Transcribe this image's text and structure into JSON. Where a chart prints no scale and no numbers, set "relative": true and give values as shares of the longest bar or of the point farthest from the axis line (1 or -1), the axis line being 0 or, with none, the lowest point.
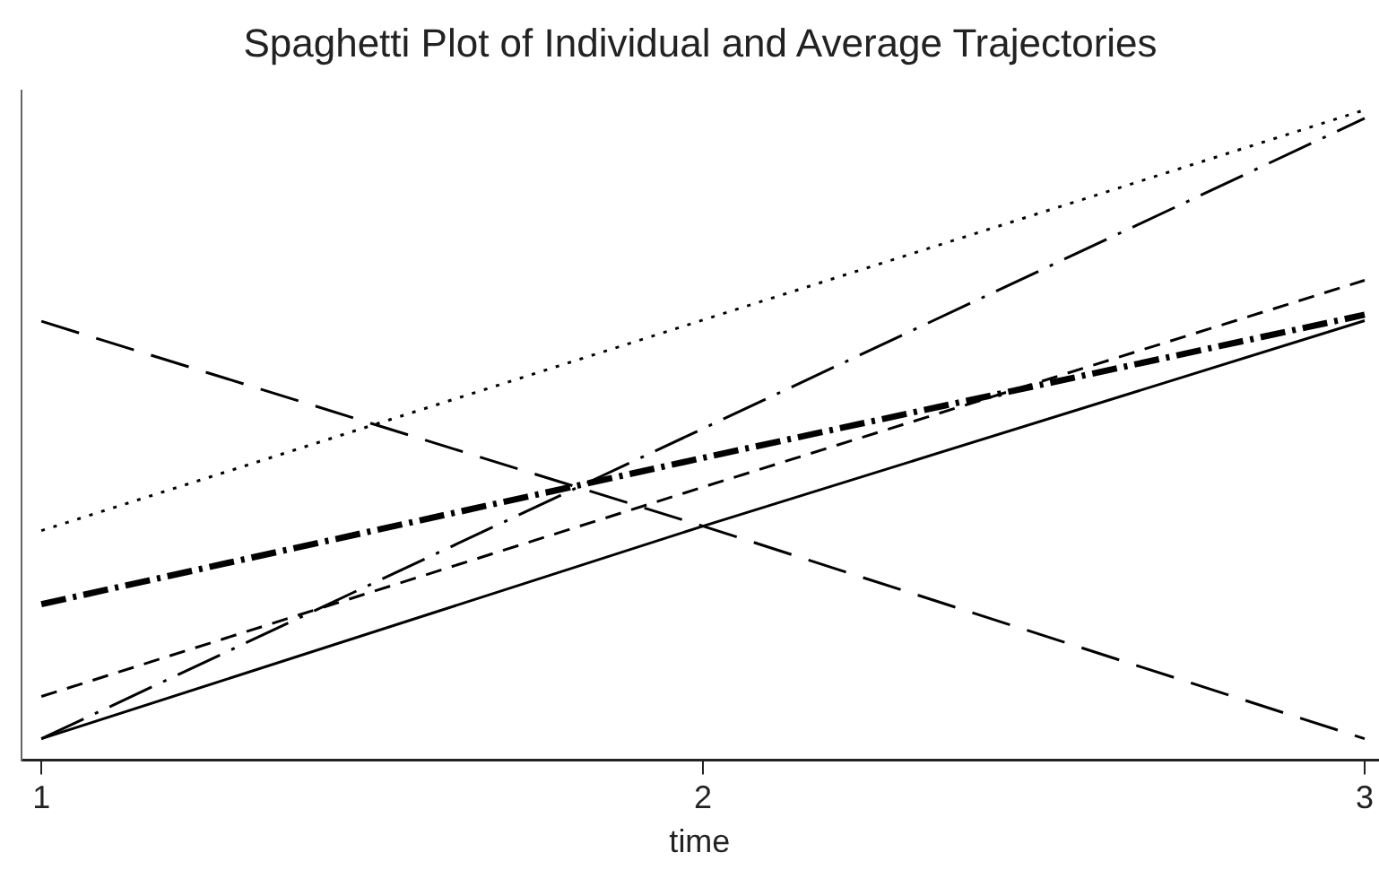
{
  "chart_data": {
    "type": "line",
    "title": "Spaghetti Plot of Individual and Average Trajectories",
    "xlabel": "time",
    "relative": true,
    "x": [
      1,
      2,
      3
    ],
    "xlim": [
      0.97,
      3.02
    ],
    "xticks": [
      1,
      2,
      3
    ],
    "grid": false,
    "legend": false,
    "marker": "none",
    "series": [
      {
        "color": "#000000",
        "line_style": "solid",
        "values": [
          0.033,
          0.36,
          0.676
        ]
      },
      {
        "color": "#000000",
        "line_style": "longdash",
        "values": [
          0.675,
          0.36,
          0.033
        ]
      },
      {
        "color": "#000000",
        "line_style": "dotted",
        "values": [
          0.353,
          0.677,
          1.0
        ]
      },
      {
        "color": "#000000",
        "line_style": "longdashdot",
        "values": [
          0.033,
          0.51,
          0.987
        ]
      },
      {
        "color": "#000000",
        "line_style": "dashed",
        "values": [
          0.098,
          0.42,
          0.738
        ]
      },
      {
        "color": "#000000",
        "line_style": "dashdot",
        "values": [
          0.24,
          0.465,
          0.685
        ]
      }
    ]
  }
}
